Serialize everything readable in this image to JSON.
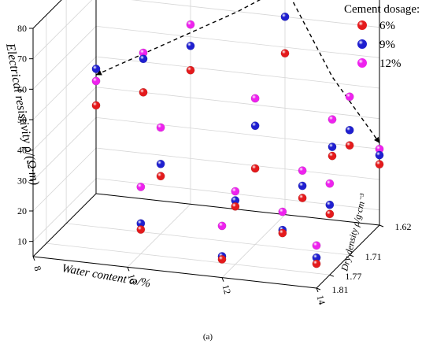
{
  "chart_data": {
    "type": "scatter3d",
    "caption": "(a)",
    "legend": {
      "title": "Cement dosage:",
      "entries": [
        {
          "label": "6%",
          "color": "#e41a1c"
        },
        {
          "label": "9%",
          "color": "#1f1fd0"
        },
        {
          "label": "12%",
          "color": "#ee22ee"
        }
      ]
    },
    "axes": {
      "x": {
        "label": "Water content ω/%",
        "range": [
          8,
          14
        ],
        "ticks": [
          "8",
          "10",
          "12",
          "14"
        ]
      },
      "y": {
        "label": "Dry density ρ/g·cm⁻³",
        "range": [
          1.62,
          1.81
        ],
        "ticks": [
          "1.62",
          "1.71",
          "1.77",
          "1.81"
        ]
      },
      "z": {
        "label": "Electrical resistivity ρ/(Ω·m)",
        "range": [
          5,
          80
        ],
        "ticks": [
          "10",
          "20",
          "30",
          "40",
          "50",
          "60",
          "70",
          "80"
        ]
      }
    },
    "series": [
      {
        "name": "6%",
        "color": "#e41a1c",
        "points": [
          {
            "x": 8,
            "y": 1.62,
            "z": 34
          },
          {
            "x": 9,
            "y": 1.62,
            "z": 40
          },
          {
            "x": 10,
            "y": 1.62,
            "z": 49
          },
          {
            "x": 12,
            "y": 1.62,
            "z": 58
          },
          {
            "x": 10,
            "y": 1.71,
            "z": 24
          },
          {
            "x": 12,
            "y": 1.71,
            "z": 30
          },
          {
            "x": 14,
            "y": 1.71,
            "z": 41
          },
          {
            "x": 10,
            "y": 1.77,
            "z": 13
          },
          {
            "x": 12,
            "y": 1.77,
            "z": 24
          },
          {
            "x": 14,
            "y": 1.77,
            "z": 25
          },
          {
            "x": 12,
            "y": 1.81,
            "z": 11
          },
          {
            "x": 14,
            "y": 1.81,
            "z": 13
          },
          {
            "x": 14,
            "y": 1.62,
            "z": 25
          },
          {
            "x": 13,
            "y": 1.62,
            "z": 26
          },
          {
            "x": 13,
            "y": 1.71,
            "z": 22
          },
          {
            "x": 13,
            "y": 1.77,
            "z": 17
          }
        ]
      },
      {
        "name": "9%",
        "color": "#1f1fd0",
        "points": [
          {
            "x": 8,
            "y": 1.62,
            "z": 46
          },
          {
            "x": 9,
            "y": 1.62,
            "z": 51
          },
          {
            "x": 10,
            "y": 1.62,
            "z": 57
          },
          {
            "x": 12,
            "y": 1.62,
            "z": 70
          },
          {
            "x": 10,
            "y": 1.71,
            "z": 28
          },
          {
            "x": 12,
            "y": 1.71,
            "z": 44
          },
          {
            "x": 14,
            "y": 1.71,
            "z": 46
          },
          {
            "x": 10,
            "y": 1.77,
            "z": 15
          },
          {
            "x": 12,
            "y": 1.77,
            "z": 26
          },
          {
            "x": 14,
            "y": 1.77,
            "z": 28
          },
          {
            "x": 12,
            "y": 1.81,
            "z": 12
          },
          {
            "x": 14,
            "y": 1.81,
            "z": 15
          },
          {
            "x": 14,
            "y": 1.62,
            "z": 28
          },
          {
            "x": 13,
            "y": 1.62,
            "z": 29
          },
          {
            "x": 13,
            "y": 1.71,
            "z": 26
          },
          {
            "x": 13,
            "y": 1.77,
            "z": 18
          }
        ]
      },
      {
        "name": "12%",
        "color": "#ee22ee",
        "points": [
          {
            "x": 8,
            "y": 1.62,
            "z": 42
          },
          {
            "x": 9,
            "y": 1.62,
            "z": 53
          },
          {
            "x": 10,
            "y": 1.62,
            "z": 64
          },
          {
            "x": 12,
            "y": 1.62,
            "z": 80
          },
          {
            "x": 10,
            "y": 1.71,
            "z": 40
          },
          {
            "x": 12,
            "y": 1.71,
            "z": 53
          },
          {
            "x": 14,
            "y": 1.71,
            "z": 57
          },
          {
            "x": 10,
            "y": 1.77,
            "z": 27
          },
          {
            "x": 12,
            "y": 1.77,
            "z": 29
          },
          {
            "x": 14,
            "y": 1.77,
            "z": 35
          },
          {
            "x": 12,
            "y": 1.81,
            "z": 22
          },
          {
            "x": 14,
            "y": 1.81,
            "z": 19
          },
          {
            "x": 14,
            "y": 1.62,
            "z": 30
          },
          {
            "x": 13,
            "y": 1.62,
            "z": 38
          },
          {
            "x": 13,
            "y": 1.71,
            "z": 31
          },
          {
            "x": 13,
            "y": 1.77,
            "z": 24
          }
        ]
      }
    ],
    "trend_line": {
      "style": "dashed",
      "color": "#000000",
      "points": [
        {
          "x": 8,
          "y": 1.62,
          "z": 44
        },
        {
          "x": 9.5,
          "y": 1.62,
          "z": 57
        },
        {
          "x": 11,
          "y": 1.62,
          "z": 70
        },
        {
          "x": 12,
          "y": 1.62,
          "z": 80
        },
        {
          "x": 13,
          "y": 1.62,
          "z": 52
        },
        {
          "x": 14,
          "y": 1.62,
          "z": 32
        }
      ]
    }
  }
}
